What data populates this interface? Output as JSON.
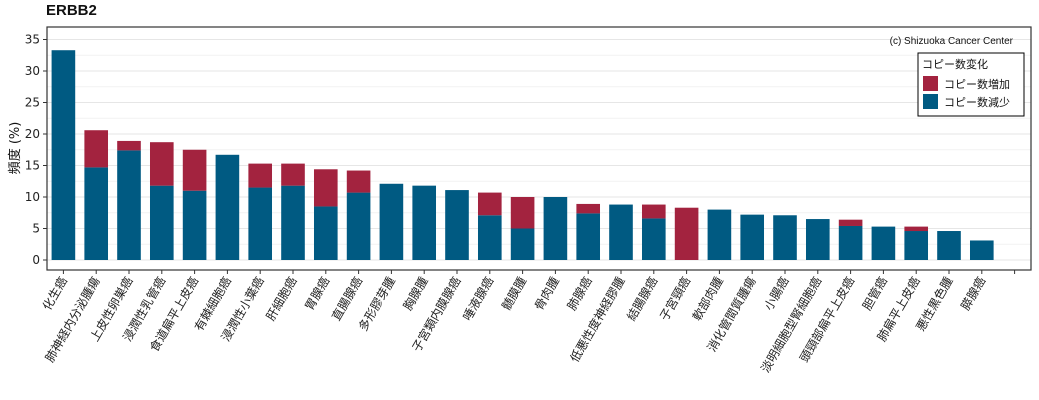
{
  "chart_data": {
    "type": "bar",
    "stacked": true,
    "title": "ERBB2",
    "ylabel": "頻度 (%)",
    "xlabel": "",
    "ylim": [
      -1.5,
      36.5
    ],
    "yticks": [
      0,
      5,
      10,
      15,
      20,
      25,
      30,
      35
    ],
    "grid": true,
    "credit": "(c) Shizuoka Cancer Center",
    "legend": {
      "title": "コピー数変化",
      "position": "top-right",
      "entries": [
        "コピー数増加",
        "コピー数減少"
      ]
    },
    "categories": [
      "化生癌",
      "肺神経内分泌腫瘍",
      "上皮性卵巣癌",
      "浸潤性乳管癌",
      "食道扁平上皮癌",
      "有棘細胞癌",
      "浸潤性小葉癌",
      "肝細胞癌",
      "胃腺癌",
      "直腸腺癌",
      "多形膠芽腫",
      "胸腺腫",
      "子宮類内膜腺癌",
      "唾液腺癌",
      "髄膜腫",
      "骨肉腫",
      "肺腺癌",
      "低悪性度神経膠腫",
      "結腸腺癌",
      "子宮頸癌",
      "軟部肉腫",
      "消化管間質腫瘍",
      "小腸癌",
      "淡明細胞型腎細胞癌",
      "頭頸部扁平上皮癌",
      "胆管癌",
      "肺扁平上皮癌",
      "悪性黒色腫",
      "膵腺癌"
    ],
    "series": [
      {
        "name": "コピー数増加",
        "color": "#A3233F",
        "values": [
          0,
          5.9,
          1.5,
          6.9,
          6.5,
          0,
          3.8,
          3.5,
          5.9,
          3.5,
          0,
          0,
          0,
          3.6,
          5.0,
          0,
          1.5,
          0,
          2.2,
          8.3,
          0,
          0,
          0,
          0,
          1.0,
          0,
          0.7,
          0,
          0
        ]
      },
      {
        "name": "コピー数減少",
        "color": "#005A82",
        "values": [
          33.3,
          14.7,
          17.4,
          11.8,
          11.0,
          16.7,
          11.5,
          11.8,
          8.5,
          10.7,
          12.1,
          11.8,
          11.1,
          7.1,
          5.0,
          10.0,
          7.4,
          8.8,
          6.6,
          0,
          8.0,
          7.2,
          7.1,
          6.5,
          5.4,
          5.3,
          4.6,
          4.6,
          3.1
        ]
      }
    ]
  }
}
